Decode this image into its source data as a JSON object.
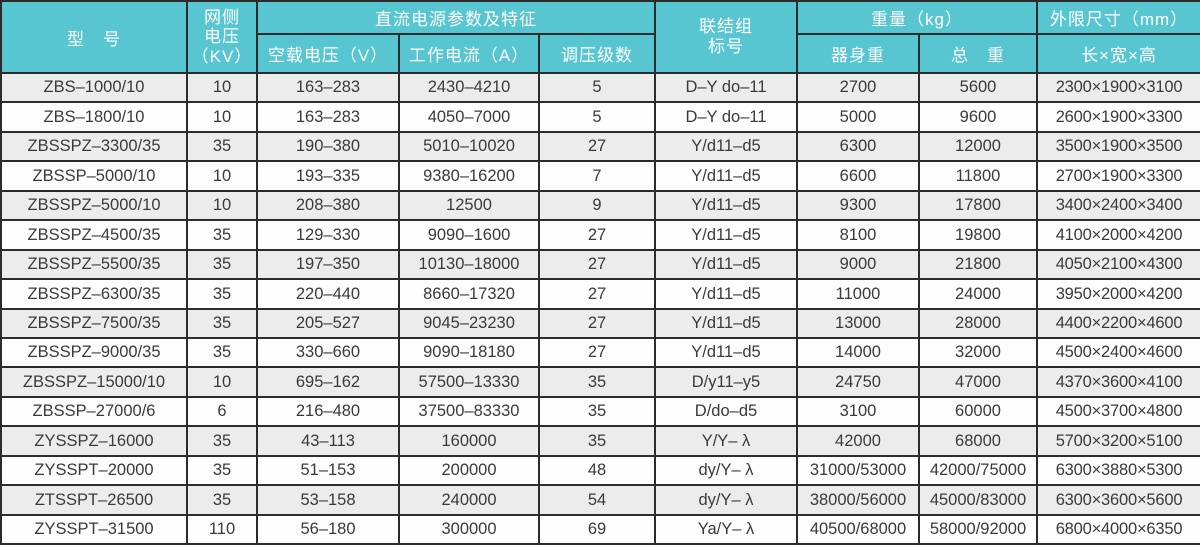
{
  "colors": {
    "header_bg": "#58c6d1",
    "header_text": "#ffffff",
    "row_stripe": "#ececec",
    "row_plain": "#fdfdfd",
    "grid_line": "#2c2c2c",
    "cell_text": "#3a3a3a"
  },
  "table": {
    "header": {
      "model": "型　号",
      "grid_voltage": "网侧\n电压\n（KV）",
      "dc_group": "直流电源参数及特征",
      "no_load_voltage": "空载电压（V）",
      "working_current": "工作电流（A）",
      "regulation_steps": "调压级数",
      "connection": "联结组\n标号",
      "weight_group": "重量（kg）",
      "body_weight": "器身重",
      "total_weight": "总　重",
      "dimensions_group": "外限尺寸（mm）",
      "dimensions": "长×宽×高"
    },
    "rows": [
      [
        "ZBS–1000/10",
        "10",
        "163–283",
        "2430–4210",
        "5",
        "D–Y do–11",
        "2700",
        "5600",
        "2300×1900×3100"
      ],
      [
        "ZBS–1800/10",
        "10",
        "163–283",
        "4050–7000",
        "5",
        "D–Y do–11",
        "5000",
        "9600",
        "2600×1900×3300"
      ],
      [
        "ZBSSPZ–3300/35",
        "35",
        "190–380",
        "5010–10020",
        "27",
        "Y/d11–d5",
        "6300",
        "12000",
        "3500×1900×3500"
      ],
      [
        "ZBSSP–5000/10",
        "10",
        "193–335",
        "9380–16200",
        "7",
        "Y/d11–d5",
        "6600",
        "11800",
        "2700×1900×3300"
      ],
      [
        "ZBSSPZ–5000/10",
        "10",
        "208–380",
        "12500",
        "9",
        "Y/d11–d5",
        "9300",
        "17800",
        "3400×2400×3400"
      ],
      [
        "ZBSSPZ–4500/35",
        "35",
        "129–330",
        "9090–1600",
        "27",
        "Y/d11–d5",
        "8100",
        "19800",
        "4100×2000×4200"
      ],
      [
        "ZBSSPZ–5500/35",
        "35",
        "197–350",
        "10130–18000",
        "27",
        "Y/d11–d5",
        "9000",
        "21800",
        "4050×2100×4300"
      ],
      [
        "ZBSSPZ–6300/35",
        "35",
        "220–440",
        "8660–17320",
        "27",
        "Y/d11–d5",
        "11000",
        "24000",
        "3950×2000×4200"
      ],
      [
        "ZBSSPZ–7500/35",
        "35",
        "205–527",
        "9045–23230",
        "27",
        "Y/d11–d5",
        "13000",
        "28000",
        "4400×2200×4600"
      ],
      [
        "ZBSSPZ–9000/35",
        "35",
        "330–660",
        "9090–18180",
        "27",
        "Y/d11–d5",
        "14000",
        "32000",
        "4500×2400×4600"
      ],
      [
        "ZBSSPZ–15000/10",
        "10",
        "695–162",
        "57500–13330",
        "35",
        "D/y11–y5",
        "24750",
        "47000",
        "4370×3600×4100"
      ],
      [
        "ZBSSP–27000/6",
        "6",
        "216–480",
        "37500–83330",
        "35",
        "D/do–d5",
        "3100",
        "60000",
        "4500×3700×4800"
      ],
      [
        "ZYSSPZ–16000",
        "35",
        "43–113",
        "160000",
        "35",
        "Y/Y– λ",
        "42000",
        "68000",
        "5700×3200×5100"
      ],
      [
        "ZYSSPT–20000",
        "35",
        "51–153",
        "200000",
        "48",
        "dy/Y– λ",
        "31000/53000",
        "42000/75000",
        "6300×3880×5300"
      ],
      [
        "ZTSSPT–26500",
        "35",
        "53–158",
        "240000",
        "54",
        "dy/Y– λ",
        "38000/56000",
        "45000/83000",
        "6300×3600×5600"
      ],
      [
        "ZYSSPT–31500",
        "110",
        "56–180",
        "300000",
        "69",
        "Ya/Y– λ",
        "40500/68000",
        "58000/92000",
        "6800×4000×6350"
      ]
    ]
  }
}
